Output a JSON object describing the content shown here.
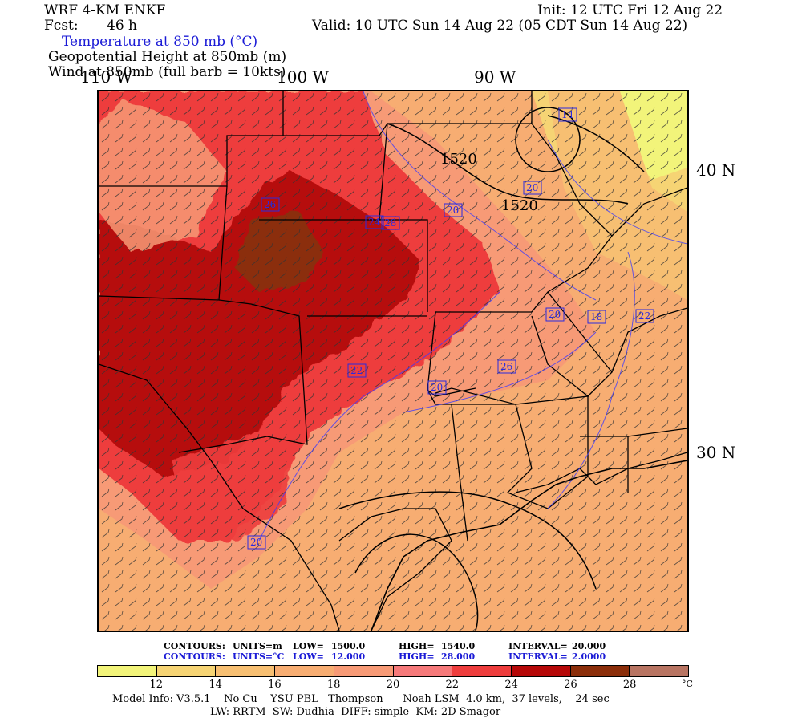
{
  "header": {
    "model": "WRF 4-KM ENKF",
    "fcst_label": "Fcst:",
    "fcst_value": "46 h",
    "init": "Init: 12 UTC Fri 12 Aug 22",
    "valid": "Valid: 10 UTC Sun 14 Aug 22 (05 CDT Sun 14 Aug 22)",
    "field1": "Temperature at 850 mb (°C)",
    "field2": "Geopotential Height at 850mb (m)",
    "field3": "Wind at 850mb (full barb = 10kts)"
  },
  "axes": {
    "lon_labels": [
      "110 W",
      "100 W",
      "90 W"
    ],
    "lat_labels": [
      "40 N",
      "30 N"
    ]
  },
  "map": {
    "height_labels": [
      "1520",
      "1520"
    ],
    "temp_labels": [
      "14",
      "26",
      "24",
      "28",
      "20",
      "20",
      "22",
      "20",
      "18",
      "22",
      "20",
      "26",
      "20"
    ]
  },
  "contour_info": {
    "height": {
      "label": "CONTOURS:",
      "units": "UNITS=m",
      "low_label": "LOW=",
      "low": "1500.0",
      "high_label": "HIGH=",
      "high": "1540.0",
      "interval_label": "INTERVAL=",
      "interval": "20.000"
    },
    "temp": {
      "label": "CONTOURS:",
      "units": "UNITS=°C",
      "low_label": "LOW=",
      "low": "12.000",
      "high_label": "HIGH=",
      "high": "28.000",
      "interval_label": "INTERVAL=",
      "interval": "2.0000"
    }
  },
  "legend": {
    "colors": [
      "#f2f47a",
      "#f6d474",
      "#f7bf72",
      "#f7ad72",
      "#f79a76",
      "#f5797a",
      "#ee3d3d",
      "#b60808",
      "#8b2e0a",
      "#b87462"
    ],
    "ticks": [
      "12",
      "14",
      "16",
      "18",
      "20",
      "22",
      "24",
      "26",
      "28"
    ],
    "unit": "°C"
  },
  "footer": {
    "line1": "Model Info: V3.5.1    No Cu    YSU PBL   Thompson      Noah LSM  4.0 km,  37 levels,    24 sec",
    "line2": "LW: RRTM  SW: Dudhia  DIFF: simple  KM: 2D Smagor"
  }
}
